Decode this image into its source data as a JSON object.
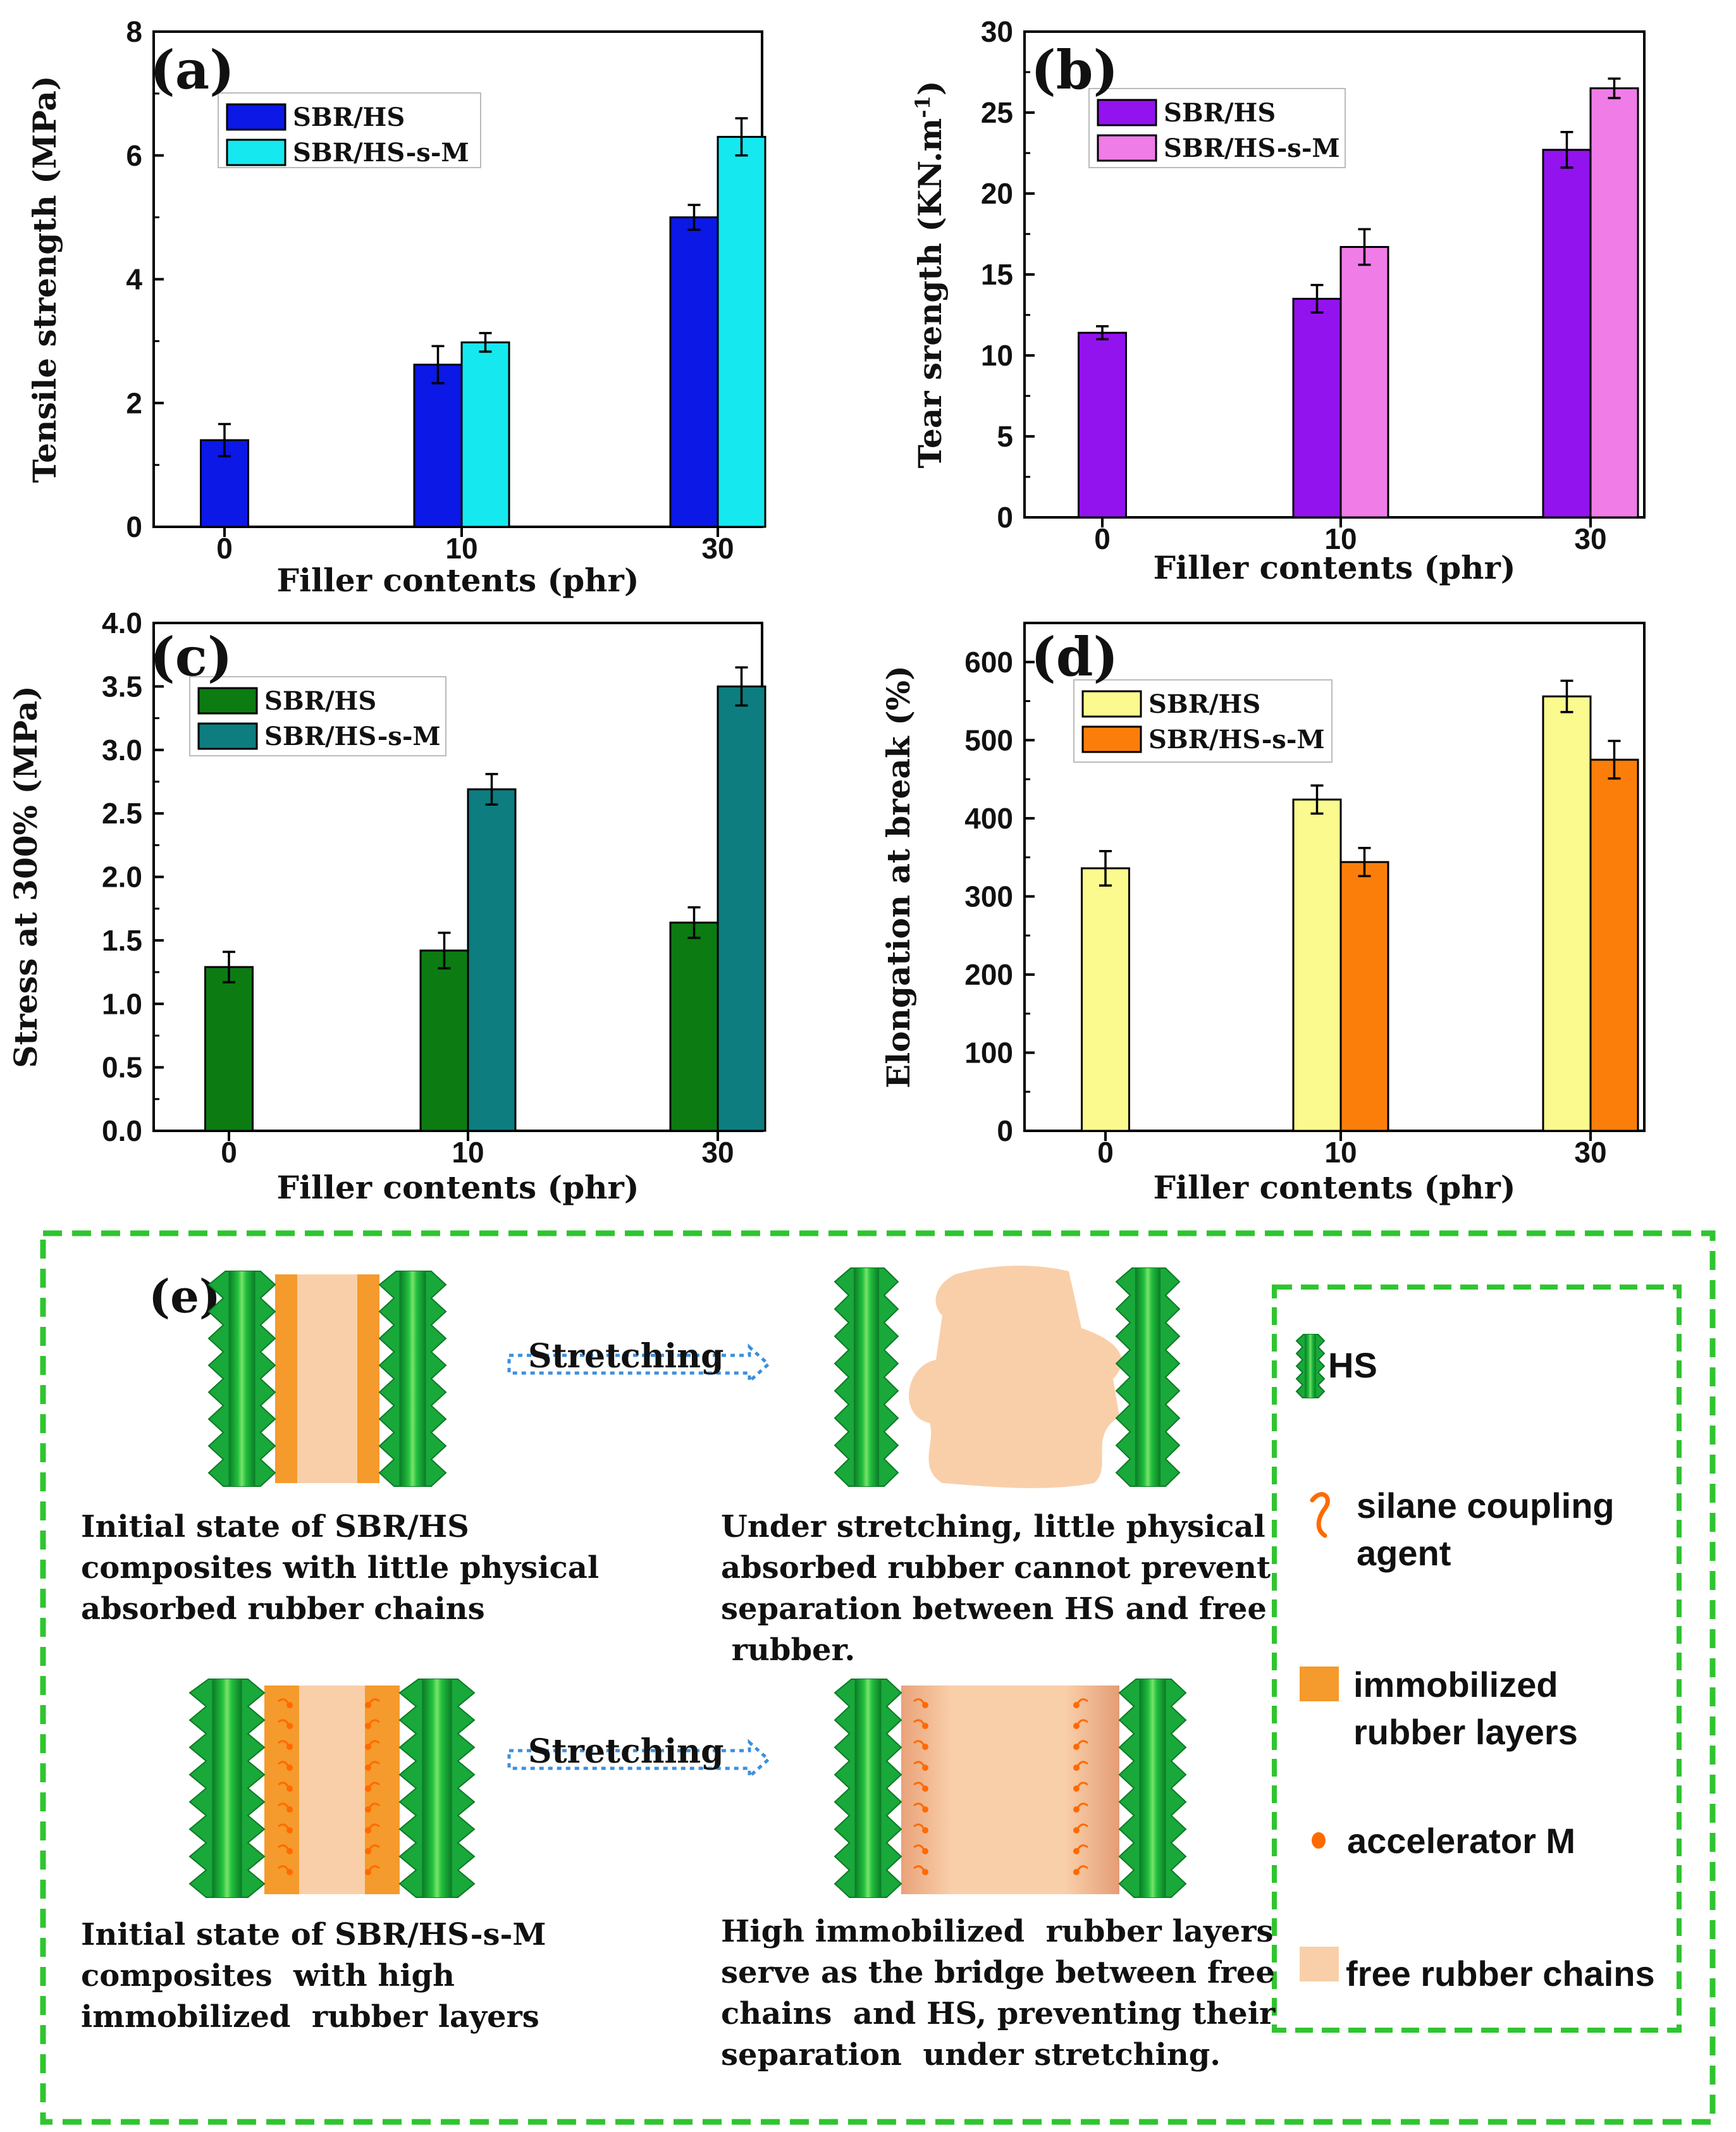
{
  "chart_data": [
    {
      "id": "a",
      "type": "bar",
      "panel_label": "(a)",
      "xlabel": "Filler contents (phr)",
      "ylabel": "Tensile strength (MPa)",
      "categories": [
        "0",
        "10",
        "30"
      ],
      "ylim": [
        0,
        8
      ],
      "yticks": [
        "0",
        "2",
        "4",
        "6",
        "8"
      ],
      "series": [
        {
          "name": "SBR/HS",
          "color": "#0b18e6",
          "values": [
            1.4,
            2.62,
            5.0
          ],
          "errors": [
            0.26,
            0.3,
            0.2
          ]
        },
        {
          "name": "SBR/HS-s-M",
          "color": "#16e8ef",
          "values": [
            null,
            2.98,
            6.3
          ],
          "errors": [
            null,
            0.15,
            0.3
          ]
        }
      ],
      "legend": "top-left"
    },
    {
      "id": "b",
      "type": "bar",
      "panel_label": "(b)",
      "xlabel": "Filler contents (phr)",
      "ylabel": "Tear srength (KN.m",
      "ylabel_sup": "-1",
      "ylabel_end": ")",
      "categories": [
        "0",
        "10",
        "30"
      ],
      "ylim": [
        0,
        30
      ],
      "yticks": [
        "0",
        "5",
        "10",
        "15",
        "20",
        "25",
        "30"
      ],
      "series": [
        {
          "name": "SBR/HS",
          "color": "#9313ee",
          "values": [
            11.4,
            13.5,
            22.7
          ],
          "errors": [
            0.4,
            0.85,
            1.1
          ]
        },
        {
          "name": "SBR/HS-s-M",
          "color": "#f07ce8",
          "values": [
            null,
            16.7,
            26.5
          ],
          "errors": [
            null,
            1.1,
            0.6
          ]
        }
      ],
      "legend": "top-left"
    },
    {
      "id": "c",
      "type": "bar",
      "panel_label": "(c)",
      "xlabel": "Filler contents (phr)",
      "ylabel": "Stress at 300% (MPa)",
      "categories": [
        "0",
        "10",
        "30"
      ],
      "ylim": [
        0,
        4
      ],
      "yticks": [
        "0.0",
        "0.5",
        "1.0",
        "1.5",
        "2.0",
        "2.5",
        "3.0",
        "3.5",
        "4.0"
      ],
      "series": [
        {
          "name": "SBR/HS",
          "color": "#0c7b12",
          "values": [
            1.29,
            1.42,
            1.64
          ],
          "errors": [
            0.12,
            0.14,
            0.12
          ]
        },
        {
          "name": "SBR/HS-s-M",
          "color": "#0d7d80",
          "values": [
            null,
            2.69,
            3.5
          ],
          "errors": [
            null,
            0.12,
            0.15
          ]
        }
      ],
      "legend": "top-left"
    },
    {
      "id": "d",
      "type": "bar",
      "panel_label": "(d)",
      "xlabel": "Filler contents (phr)",
      "ylabel": "Elongation at break (%)",
      "categories": [
        "0",
        "10",
        "30"
      ],
      "ylim": [
        0,
        650
      ],
      "yticks": [
        "0",
        "100",
        "200",
        "300",
        "400",
        "500",
        "600"
      ],
      "series": [
        {
          "name": "SBR/HS",
          "color": "#fbfa8e",
          "values": [
            336,
            424,
            556
          ],
          "errors": [
            22,
            18,
            20
          ]
        },
        {
          "name": "SBR/HS-s-M",
          "color": "#fb7e0a",
          "values": [
            null,
            344,
            475
          ],
          "errors": [
            null,
            18,
            24
          ]
        }
      ],
      "legend": "top-left"
    }
  ],
  "scheme": {
    "panel_label": "(e)",
    "stretching_1": "Stretching",
    "stretching_2": "Stretching",
    "desc_top_left": [
      "Initial state of SBR/HS",
      "composites with little physical",
      "absorbed rubber chains"
    ],
    "desc_top_right": [
      "Under stretching, little physical",
      "absorbed rubber cannot prevent",
      "separation between HS and free",
      " rubber."
    ],
    "desc_bottom_left": [
      "Initial state of SBR/HS-s-M",
      "composites  with high",
      "immobilized  rubber layers"
    ],
    "desc_bottom_right": [
      "High immobilized  rubber layers",
      "serve as the bridge between free",
      "chains  and HS, preventing their",
      "separation  under stretching."
    ],
    "legend": {
      "hs": "HS",
      "silane": [
        "silane coupling",
        "agent"
      ],
      "immobilized": [
        "immobilized",
        "rubber layers"
      ],
      "accelerator": "accelerator M",
      "free": "free rubber chains"
    },
    "colors": {
      "hs_dark": "#0f8a2e",
      "hs_mid": "#17b63a",
      "hs_light": "#5fd85a",
      "orange": "#f59a2c",
      "free_rubber": "#f9cfa9",
      "dot": "#ff6a00",
      "arrow": "#3c8fdc",
      "dash": "#2fc52f"
    }
  }
}
